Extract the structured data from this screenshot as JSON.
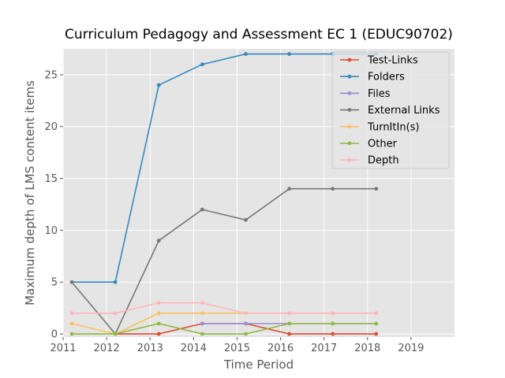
{
  "chart_data": {
    "type": "line",
    "title": "Curriculum Pedagogy and Assessment EC 1 (EDUC90702)",
    "xlabel": "Time Period",
    "ylabel": "Maximum depth of LMS content items",
    "xlim": [
      2011,
      2020
    ],
    "ylim": [
      -0.3,
      27.5
    ],
    "xticks": [
      2011,
      2012,
      2013,
      2014,
      2015,
      2016,
      2017,
      2018,
      2019
    ],
    "yticks": [
      0,
      5,
      10,
      15,
      20,
      25
    ],
    "x": [
      2011.2,
      2012.2,
      2013.2,
      2014.2,
      2015.2,
      2016.2,
      2017.2,
      2018.2
    ],
    "grid": true,
    "legend_position": "top-right",
    "series": [
      {
        "name": "Test-Links",
        "color": "#E24A33",
        "values": [
          null,
          0,
          0,
          1,
          1,
          0,
          0,
          0
        ]
      },
      {
        "name": "Folders",
        "color": "#348ABD",
        "values": [
          5,
          5,
          24,
          26,
          27,
          27,
          27,
          27
        ]
      },
      {
        "name": "Files",
        "color": "#988ED5",
        "values": [
          null,
          null,
          null,
          1,
          1,
          1,
          1,
          1
        ]
      },
      {
        "name": "External Links",
        "color": "#777777",
        "values": [
          5,
          0,
          9,
          12,
          11,
          14,
          14,
          14
        ]
      },
      {
        "name": "TurnItIn(s)",
        "color": "#FBC15E",
        "values": [
          1,
          0,
          2,
          2,
          2,
          2,
          2,
          2
        ]
      },
      {
        "name": "Other",
        "color": "#8EBA42",
        "values": [
          0,
          0,
          1,
          0,
          0,
          1,
          1,
          1
        ]
      },
      {
        "name": "Depth",
        "color": "#FFB5B8",
        "values": [
          2,
          2,
          3,
          3,
          2,
          2,
          2,
          2
        ]
      }
    ]
  }
}
